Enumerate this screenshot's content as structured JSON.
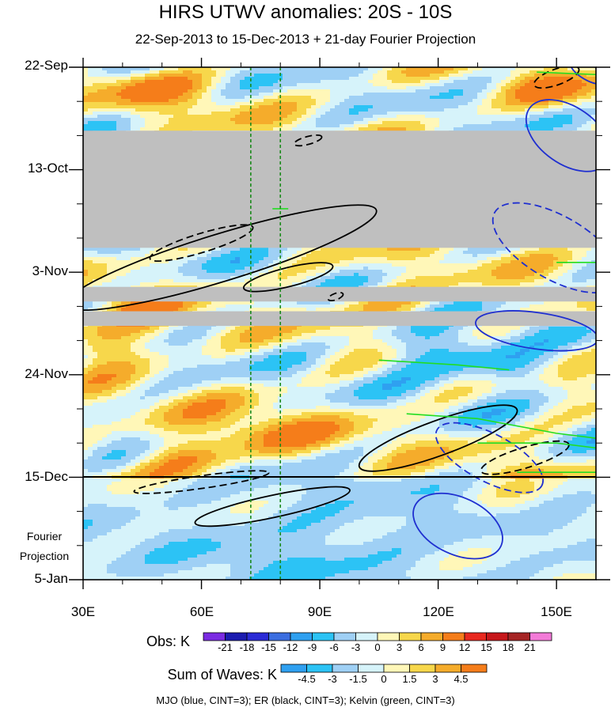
{
  "chart_data": {
    "type": "heatmap",
    "title": "HIRS UTWV anomalies: 20S - 10S",
    "subtitle": "22-Sep-2013 to 15-Dec-2013 + 21-day Fourier Projection",
    "x_ticks": [
      "30E",
      "60E",
      "90E",
      "120E",
      "150E"
    ],
    "x_tick_values": [
      30,
      60,
      90,
      120,
      150
    ],
    "xlim": [
      30,
      160
    ],
    "y_ticks": [
      "22-Sep",
      "13-Oct",
      "3-Nov",
      "24-Nov",
      "15-Dec",
      "5-Jan"
    ],
    "y_tick_days": [
      0,
      21,
      42,
      63,
      84,
      105
    ],
    "ylim_days": [
      0,
      105
    ],
    "projection_start_day": 84,
    "projection_label_line1": "Fourier",
    "projection_label_line2": "Projection",
    "reference_lines_longitude": [
      72.5,
      80
    ],
    "obs_colorbar": {
      "label": "Obs: K",
      "levels": [
        "-21",
        "-18",
        "-15",
        "-12",
        "-9",
        "-6",
        "-3",
        "0",
        "3",
        "6",
        "9",
        "12",
        "15",
        "18",
        "21"
      ],
      "colors": [
        "#7b2be2",
        "#1c1cb0",
        "#2b2bd6",
        "#3c6ee0",
        "#2fa0f0",
        "#2cc3f5",
        "#9fd0f5",
        "#d6f3fa",
        "#fff7b8",
        "#f7d74b",
        "#f5ac2b",
        "#f57d1a",
        "#e8281f",
        "#c7171b",
        "#a62525",
        "#f37bd8"
      ]
    },
    "waves_colorbar": {
      "label": "Sum of Waves: K",
      "levels": [
        "-4.5",
        "-3",
        "-1.5",
        "0",
        "1.5",
        "3",
        "4.5"
      ],
      "colors": [
        "#2fa0f0",
        "#2cc3f5",
        "#9fd0f5",
        "#d6f3fa",
        "#fff7b8",
        "#f7d74b",
        "#f5ac2b",
        "#f57d1a"
      ]
    },
    "missing_data_bands_days": [
      [
        13,
        37
      ],
      [
        45,
        48
      ],
      [
        50,
        53
      ]
    ],
    "contour_legend": "MJO (blue, CINT=3); ER (black, CINT=3); Kelvin (green, CINT=3)",
    "colors": {
      "mjo": "#1f2fd0",
      "er": "#000000",
      "kelvin": "#22dd22",
      "missing": "#bfbfbf",
      "reference_line": "#1a8a1a"
    }
  }
}
